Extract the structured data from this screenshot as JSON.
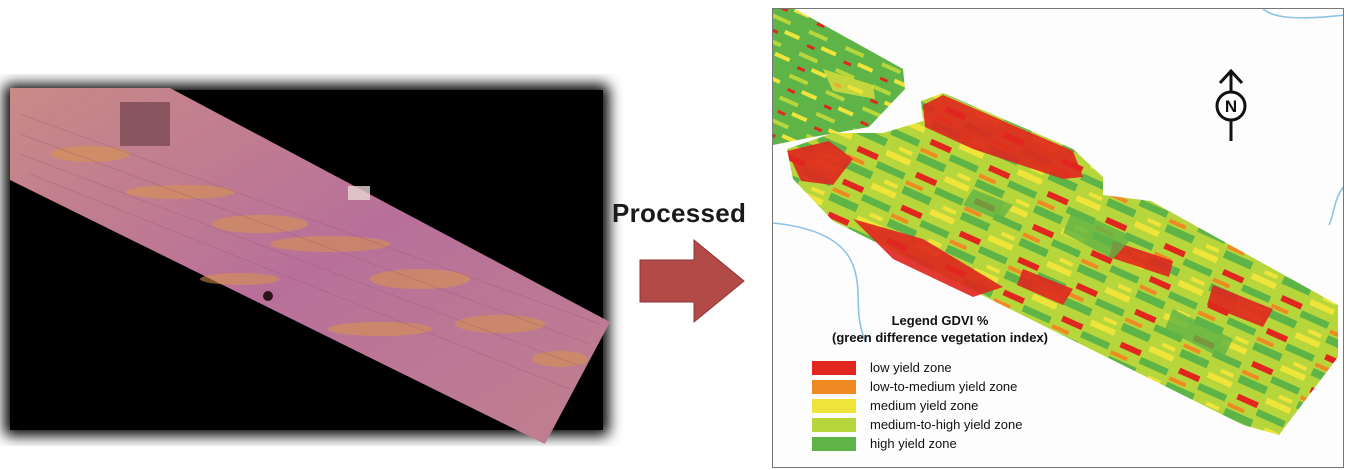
{
  "process_label": "Processed",
  "colors": {
    "arrow": "#b24a48",
    "low": "#e0261e",
    "low_medium": "#ef8a22",
    "medium": "#efe43a",
    "medium_high": "#b7d63c",
    "high": "#5fb447",
    "water": "#8ec3e6",
    "raw_field": "#b46e8c",
    "raw_background": "#000000"
  },
  "map": {
    "north_symbol": "N"
  },
  "legend": {
    "title_line1": "Legend GDVI %",
    "title_line2": "(green difference vegetation index)",
    "items": [
      {
        "label": "low yield zone",
        "color": "#e0261e"
      },
      {
        "label": "low-to-medium yield zone",
        "color": "#ef8a22"
      },
      {
        "label": "medium yield zone",
        "color": "#efe43a"
      },
      {
        "label": "medium-to-high yield zone",
        "color": "#b7d63c"
      },
      {
        "label": "high yield zone",
        "color": "#5fb447"
      }
    ]
  }
}
